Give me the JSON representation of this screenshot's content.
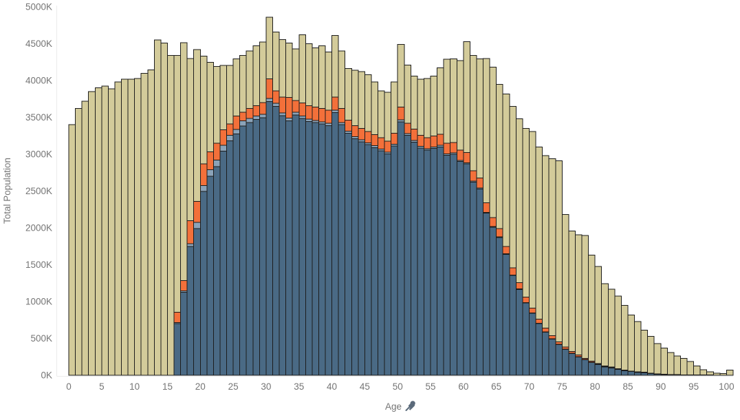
{
  "chart_data": {
    "type": "bar",
    "stacked": true,
    "unit": "K (thousands)",
    "xlabel": "Age",
    "ylabel": "Total Population",
    "ylim": [
      0,
      5000
    ],
    "x_range": [
      0,
      100
    ],
    "y_ticks": [
      "0K",
      "500K",
      "1000K",
      "1500K",
      "2000K",
      "2500K",
      "3000K",
      "3500K",
      "4000K",
      "4500K",
      "5000K"
    ],
    "x_ticks": [
      0,
      5,
      10,
      15,
      20,
      25,
      30,
      35,
      40,
      45,
      50,
      55,
      60,
      65,
      70,
      75,
      80,
      85,
      90,
      95,
      100
    ],
    "grid": "off",
    "legend": "none",
    "totals": [
      3400,
      3620,
      3720,
      3850,
      3900,
      3925,
      3890,
      3980,
      4020,
      4020,
      4030,
      4100,
      4145,
      4550,
      4510,
      4340,
      4340,
      4515,
      4300,
      4420,
      4330,
      4250,
      4190,
      4205,
      4205,
      4295,
      4340,
      4400,
      4470,
      4525,
      4860,
      4660,
      4555,
      4510,
      4430,
      4620,
      4500,
      4445,
      4470,
      4390,
      4610,
      4400,
      4165,
      4140,
      4120,
      4080,
      3980,
      3860,
      3840,
      3980,
      4490,
      4210,
      4060,
      4020,
      4030,
      4060,
      4175,
      4290,
      4295,
      4270,
      4530,
      4340,
      4295,
      4300,
      4180,
      3950,
      3820,
      3650,
      3480,
      3350,
      3310,
      3100,
      2980,
      2940,
      2910,
      2180,
      1960,
      1905,
      1895,
      1630,
      1475,
      1245,
      1170,
      1075,
      950,
      820,
      730,
      610,
      530,
      430,
      370,
      310,
      260,
      230,
      185,
      125,
      75,
      45,
      30,
      25,
      70
    ],
    "series": [
      {
        "name": "dark-blue-segment",
        "color": "#4a6a85",
        "values": [
          0,
          0,
          0,
          0,
          0,
          0,
          0,
          0,
          0,
          0,
          0,
          0,
          0,
          0,
          0,
          0,
          700,
          1125,
          1750,
          1990,
          2495,
          2700,
          2830,
          3040,
          3180,
          3275,
          3385,
          3430,
          3470,
          3495,
          3715,
          3650,
          3525,
          3455,
          3535,
          3485,
          3445,
          3430,
          3410,
          3390,
          3565,
          3400,
          3285,
          3210,
          3170,
          3130,
          3090,
          3045,
          3005,
          3110,
          3440,
          3255,
          3165,
          3085,
          3055,
          3080,
          3100,
          2985,
          3000,
          2900,
          2870,
          2620,
          2530,
          2200,
          2010,
          1870,
          1640,
          1355,
          1165,
          980,
          840,
          700,
          585,
          490,
          415,
          350,
          295,
          250,
          210,
          175,
          145,
          115,
          100,
          80,
          60,
          50,
          40,
          35,
          25,
          15,
          10,
          8,
          6,
          5,
          4,
          3,
          2,
          2,
          1,
          1,
          1
        ]
      },
      {
        "name": "light-blue-segment",
        "color": "#8ba3b9",
        "values": [
          0,
          0,
          0,
          0,
          0,
          0,
          0,
          0,
          0,
          0,
          0,
          0,
          0,
          0,
          0,
          0,
          15,
          20,
          35,
          85,
          80,
          90,
          90,
          80,
          78,
          62,
          70,
          55,
          50,
          45,
          40,
          40,
          35,
          35,
          35,
          33,
          32,
          30,
          30,
          30,
          32,
          30,
          28,
          27,
          26,
          25,
          25,
          24,
          23,
          24,
          28,
          25,
          23,
          22,
          21,
          20,
          20,
          18,
          18,
          16,
          15,
          14,
          12,
          11,
          10,
          9,
          8,
          7,
          7,
          6,
          6,
          5,
          5,
          5,
          4,
          4,
          4,
          3,
          3,
          3,
          3,
          2,
          2,
          2,
          2,
          2,
          1,
          1,
          1,
          1,
          1,
          1,
          1,
          1,
          1,
          1,
          1,
          1,
          0,
          0,
          0
        ]
      },
      {
        "name": "orange-segment",
        "color": "#f3703a",
        "values": [
          0,
          0,
          0,
          0,
          0,
          0,
          0,
          0,
          0,
          0,
          0,
          0,
          0,
          0,
          0,
          0,
          140,
          140,
          315,
          285,
          295,
          245,
          230,
          210,
          155,
          180,
          115,
          135,
          140,
          160,
          270,
          170,
          215,
          280,
          160,
          180,
          180,
          180,
          180,
          180,
          180,
          190,
          150,
          150,
          155,
          155,
          150,
          155,
          150,
          150,
          170,
          140,
          155,
          150,
          150,
          150,
          150,
          145,
          140,
          140,
          140,
          140,
          135,
          130,
          120,
          110,
          100,
          95,
          85,
          75,
          65,
          55,
          48,
          42,
          35,
          30,
          25,
          22,
          18,
          15,
          13,
          11,
          9,
          8,
          7,
          6,
          5,
          4,
          3,
          2,
          2,
          2,
          2,
          1,
          1,
          1,
          1,
          0,
          0,
          0,
          0
        ]
      },
      {
        "name": "tan-remainder-to-total",
        "color": "#d3cb9a",
        "is_remainder": true
      }
    ],
    "bar_border_color": "#1c1c1c",
    "axis_text_color": "#757575",
    "axis_line_color": "#ececec",
    "pin_icon_color": "#5b6a7a",
    "background_color": "#ffffff"
  }
}
